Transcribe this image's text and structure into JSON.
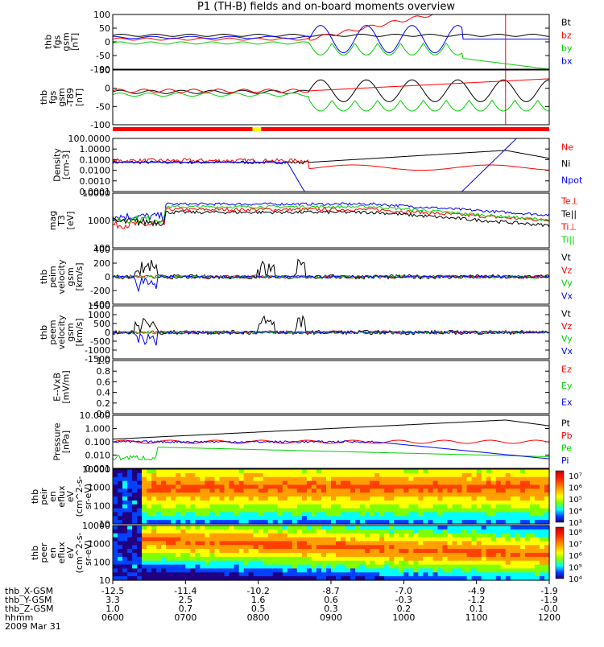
{
  "title": "P1 (TH-B) fields and on-board moments overview",
  "bottom_axis": {
    "rows": [
      {
        "label": "thb_X-GSM",
        "values": [
          "-12.5",
          "-11.4",
          "-10.2",
          "-8.7",
          "-7.0",
          "-4.9",
          "-1.9"
        ]
      },
      {
        "label": "thb_Y-GSM",
        "values": [
          "3.3",
          "2.5",
          "1.6",
          "0.6",
          "-0.3",
          "-1.2",
          "-1.9"
        ]
      },
      {
        "label": "thb_Z-GSM",
        "values": [
          "1.0",
          "0.7",
          "0.5",
          "0.3",
          "0.2",
          "0.1",
          "-0.0"
        ]
      },
      {
        "label": "hhmm",
        "values": [
          "0600",
          "0700",
          "0800",
          "0900",
          "1000",
          "1100",
          "1200"
        ]
      }
    ],
    "date": "2009 Mar 31"
  },
  "colors": {
    "black": "#000000",
    "red": "#ff0000",
    "green": "#00d000",
    "blue": "#0000ff"
  },
  "chart_data": [
    {
      "type": "line",
      "id": "fgs",
      "ylabel_lines": [
        "thb",
        "fgs",
        "gsm",
        "[nT]"
      ],
      "ylim": [
        -100,
        100
      ],
      "yticks": [
        "100",
        "50",
        "0",
        "-50",
        "-100"
      ],
      "legend": [
        {
          "text": "Bt",
          "color": "#000000"
        },
        {
          "text": "bz",
          "color": "#ff0000"
        },
        {
          "text": "by",
          "color": "#00d000"
        },
        {
          "text": "bx",
          "color": "#0000ff"
        }
      ]
    },
    {
      "type": "line",
      "id": "fgs_dsl",
      "ylabel_lines": [
        "thb",
        "fgs",
        "gsm",
        "-T89",
        "[nT]"
      ],
      "ylim": [
        -120,
        80
      ],
      "yticks": [
        "50",
        "0",
        "-50",
        "-100"
      ],
      "legend": []
    },
    {
      "type": "line",
      "id": "density",
      "ylabel_lines": [
        "Density",
        "[cm-3]"
      ],
      "yscale": "log",
      "ylim": [
        0.0001,
        100
      ],
      "yticks": [
        "100.0000",
        "1.0000",
        "0.1000",
        "0.0100",
        "0.0010",
        "0.0001"
      ],
      "legend": [
        {
          "text": "Ne",
          "color": "#ff0000"
        },
        {
          "text": "Ni",
          "color": "#000000"
        },
        {
          "text": "Npot",
          "color": "#0000ff"
        }
      ]
    },
    {
      "type": "line",
      "id": "temp",
      "ylabel_lines": [
        "mag",
        "T3",
        "[eV]"
      ],
      "yscale": "log",
      "ylim": [
        10,
        10000
      ],
      "yticks": [
        "10000",
        "1000",
        "100"
      ],
      "legend": [
        {
          "text": "Te⊥",
          "color": "#ff0000"
        },
        {
          "text": "Te||",
          "color": "#000000"
        },
        {
          "text": "Ti⊥",
          "color": "#ff0000"
        },
        {
          "text": "Ti||",
          "color": "#00d000"
        }
      ]
    },
    {
      "type": "line",
      "id": "peim_v",
      "ylabel_lines": [
        "thb",
        "peim",
        "velocity",
        "gsm",
        "[km/s]"
      ],
      "ylim": [
        -400,
        400
      ],
      "yticks": [
        "400",
        "200",
        "0",
        "-200",
        "-400"
      ],
      "legend": [
        {
          "text": "Vt",
          "color": "#000000"
        },
        {
          "text": "Vz",
          "color": "#ff0000"
        },
        {
          "text": "Vy",
          "color": "#00d000"
        },
        {
          "text": "Vx",
          "color": "#0000ff"
        }
      ]
    },
    {
      "type": "line",
      "id": "peem_v",
      "ylabel_lines": [
        "thb",
        "peem",
        "velocity",
        "gsm",
        "[km/s]"
      ],
      "ylim": [
        -1500,
        1500
      ],
      "yticks": [
        "1500",
        "1000",
        "500",
        "0",
        "-500",
        "-1000",
        "-1500"
      ],
      "legend": [
        {
          "text": "Vt",
          "color": "#000000"
        },
        {
          "text": "Vz",
          "color": "#ff0000"
        },
        {
          "text": "Vy",
          "color": "#00d000"
        },
        {
          "text": "Vx",
          "color": "#0000ff"
        }
      ]
    },
    {
      "type": "line",
      "id": "efield",
      "ylabel_lines": [
        "E--VxB",
        "[mV/m]"
      ],
      "ylim": [
        0,
        1
      ],
      "yticks": [
        "1.0",
        "0.8",
        "0.6",
        "0.4",
        "0.2",
        "0.0"
      ],
      "legend": [
        {
          "text": "Ez",
          "color": "#ff0000"
        },
        {
          "text": "Ey",
          "color": "#00d000"
        },
        {
          "text": "Ex",
          "color": "#0000ff"
        }
      ]
    },
    {
      "type": "line",
      "id": "pressure",
      "ylabel_lines": [
        "Pressure",
        "[nPa]"
      ],
      "yscale": "log",
      "ylim": [
        0.001,
        10
      ],
      "yticks": [
        "10.000",
        "1.000",
        "0.100",
        "0.010",
        "0.001"
      ],
      "legend": [
        {
          "text": "Pt",
          "color": "#000000"
        },
        {
          "text": "Pb",
          "color": "#ff0000"
        },
        {
          "text": "Pe",
          "color": "#00d000"
        },
        {
          "text": "Pi",
          "color": "#0000ff"
        }
      ]
    },
    {
      "type": "heatmap",
      "id": "peir",
      "ylabel_lines": [
        "thb",
        "peir",
        "en",
        "eflux",
        "eV",
        "(cm^2-s-",
        "sr-eV)"
      ],
      "yscale": "log",
      "ylim": [
        10,
        10000
      ],
      "yticks": [
        "10000",
        "1000",
        "100",
        "10"
      ],
      "colorbar_ticks": [
        "10⁷",
        "10⁶",
        "10⁵",
        "10⁴",
        "10³"
      ]
    },
    {
      "type": "heatmap",
      "id": "peer",
      "ylabel_lines": [
        "thb",
        "peer",
        "en",
        "eflux",
        "eV",
        "(cm^2-s-",
        "sr-eV)"
      ],
      "yscale": "log",
      "ylim": [
        10,
        10000
      ],
      "yticks": [
        "10000",
        "1000",
        "100",
        "10"
      ],
      "colorbar_ticks": [
        "10⁸",
        "10⁷",
        "10⁶",
        "10⁵",
        "10⁴"
      ]
    }
  ]
}
